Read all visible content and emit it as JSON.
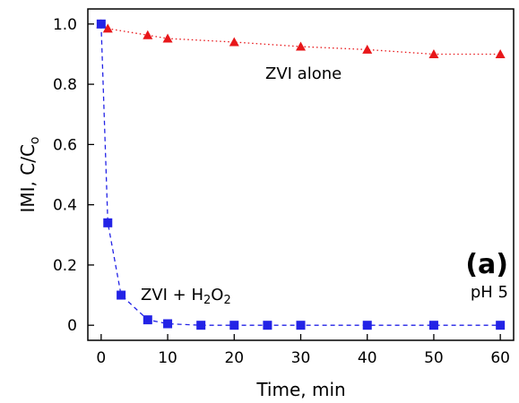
{
  "chart_data": {
    "type": "line",
    "xlabel": "Time, min",
    "ylabel_main": "IMI, C/C",
    "ylabel_sub": "o",
    "xlim": [
      -2,
      62
    ],
    "ylim": [
      -0.05,
      1.05
    ],
    "x_ticks": [
      0,
      10,
      20,
      30,
      40,
      50,
      60
    ],
    "y_ticks": [
      0,
      0.2,
      0.4,
      0.6,
      0.8,
      1.0
    ],
    "y_tick_labels": [
      "0",
      "0.2",
      "0.4",
      "0.6",
      "0.8",
      "1.0"
    ],
    "grid": false,
    "series": [
      {
        "name": "ZVI alone",
        "color": "#e8171a",
        "marker": "triangle",
        "line": "dotted",
        "x": [
          0,
          1,
          7,
          10,
          20,
          30,
          40,
          50,
          60
        ],
        "y": [
          1.0,
          0.985,
          0.963,
          0.952,
          0.94,
          0.925,
          0.915,
          0.9,
          0.9
        ]
      },
      {
        "name": "ZVI + H2O2",
        "color": "#2323e6",
        "marker": "square",
        "line": "dashed",
        "x": [
          0,
          1,
          3,
          7,
          10,
          15,
          20,
          25,
          30,
          40,
          50,
          60
        ],
        "y": [
          1.0,
          0.34,
          0.1,
          0.018,
          0.005,
          0.0,
          0.0,
          0.0,
          0.0,
          0.0,
          0.0,
          0.0
        ]
      }
    ],
    "annotations": {
      "zvi_alone": "ZVI  alone",
      "zvi_h2o2_prefix": "ZVI  +  H",
      "zvi_h2o2_sub1": "2",
      "zvi_h2o2_mid": "O",
      "zvi_h2o2_sub2": "2",
      "panel": "(a)",
      "ph": "pH  5"
    }
  }
}
